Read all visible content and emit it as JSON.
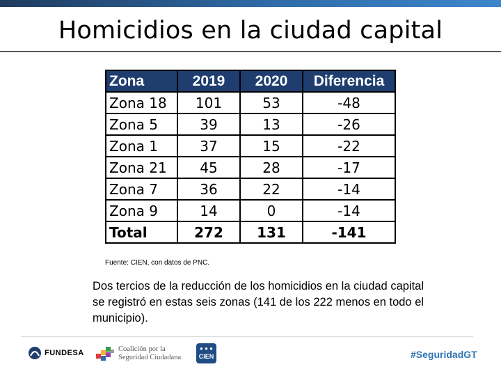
{
  "slide": {
    "title": "Homicidios en la ciudad capital",
    "source": "Fuente: CIEN, con datos de PNC.",
    "note": "Dos tercios de la reducción de los homicidios en la ciudad capital se registró en estas seis zonas (141 de los 222 menos en todo el municipio)."
  },
  "table": {
    "headers": [
      "Zona",
      "2019",
      "2020",
      "Diferencia"
    ],
    "rows": [
      [
        "Zona 18",
        "101",
        "53",
        "-48"
      ],
      [
        "Zona 5",
        "39",
        "13",
        "-26"
      ],
      [
        "Zona 1",
        "37",
        "15",
        "-22"
      ],
      [
        "Zona 21",
        "45",
        "28",
        "-17"
      ],
      [
        "Zona 7",
        "36",
        "22",
        "-14"
      ],
      [
        "Zona 9",
        "14",
        "0",
        "-14"
      ]
    ],
    "total": [
      "Total",
      "272",
      "131",
      "-141"
    ]
  },
  "footer": {
    "fundesa": "FUNDESA",
    "coalicion_line1": "Coalición por la",
    "coalicion_line2": "Seguridad Ciudadana",
    "cien": "CIEN",
    "hashtag": "#SeguridadGT"
  },
  "colors": {
    "header_bg": "#1f3d6f",
    "hashtag": "#2e74b5"
  }
}
